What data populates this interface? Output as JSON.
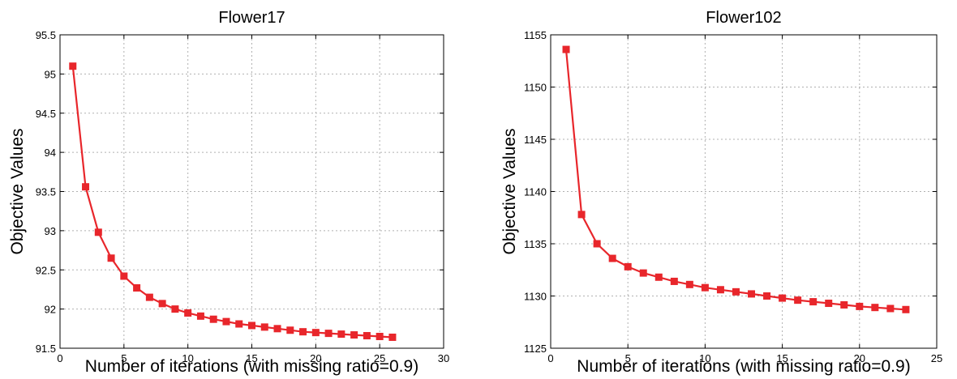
{
  "chart_data": [
    {
      "type": "line",
      "title": "Flower17",
      "xlabel": "Number of iterations (with missing ratio=0.9)",
      "ylabel": "Objective Values",
      "xlim": [
        0,
        30
      ],
      "ylim": [
        91.5,
        95.5
      ],
      "xticks": [
        0,
        5,
        10,
        15,
        20,
        25,
        30
      ],
      "yticks": [
        91.5,
        92,
        92.5,
        93,
        93.5,
        94,
        94.5,
        95,
        95.5
      ],
      "grid": true,
      "color": "#e8262b",
      "marker": "square",
      "x": [
        1,
        2,
        3,
        4,
        5,
        6,
        7,
        8,
        9,
        10,
        11,
        12,
        13,
        14,
        15,
        16,
        17,
        18,
        19,
        20,
        21,
        22,
        23,
        24,
        25,
        26
      ],
      "y": [
        95.1,
        93.56,
        92.98,
        92.65,
        92.42,
        92.27,
        92.15,
        92.07,
        92.0,
        91.95,
        91.91,
        91.87,
        91.84,
        91.81,
        91.79,
        91.77,
        91.75,
        91.73,
        91.71,
        91.7,
        91.69,
        91.68,
        91.67,
        91.66,
        91.65,
        91.64
      ]
    },
    {
      "type": "line",
      "title": "Flower102",
      "xlabel": "Number of iterations (with missing ratio=0.9)",
      "ylabel": "Objective Values",
      "xlim": [
        0,
        25
      ],
      "ylim": [
        1125,
        1155
      ],
      "xticks": [
        0,
        5,
        10,
        15,
        20,
        25
      ],
      "yticks": [
        1125,
        1130,
        1135,
        1140,
        1145,
        1150,
        1155
      ],
      "grid": true,
      "color": "#e8262b",
      "marker": "square",
      "x": [
        1,
        2,
        3,
        4,
        5,
        6,
        7,
        8,
        9,
        10,
        11,
        12,
        13,
        14,
        15,
        16,
        17,
        18,
        19,
        20,
        21,
        22,
        23
      ],
      "y": [
        1153.6,
        1137.8,
        1135.0,
        1133.6,
        1132.8,
        1132.2,
        1131.8,
        1131.4,
        1131.1,
        1130.8,
        1130.6,
        1130.4,
        1130.2,
        1130.0,
        1129.8,
        1129.6,
        1129.45,
        1129.3,
        1129.15,
        1129.0,
        1128.9,
        1128.8,
        1128.7
      ]
    }
  ]
}
